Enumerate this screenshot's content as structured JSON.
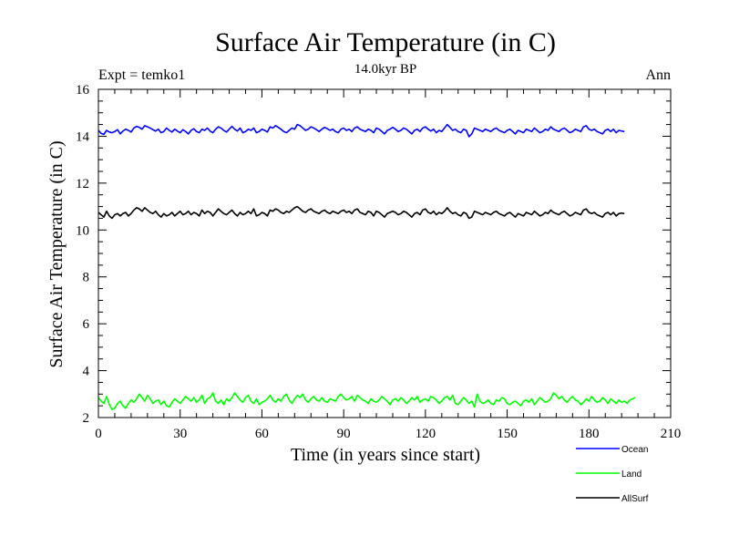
{
  "chart_data": {
    "type": "line",
    "title": "Surface Air Temperature (in C)",
    "subtitle": "14.0kyr BP",
    "annotation_left": "Expt = temko1",
    "annotation_right": "Ann",
    "xlabel": "Time (in years since start)",
    "ylabel": "Surface Air Temperature (in C)",
    "xlim": [
      0,
      210
    ],
    "ylim": [
      2,
      16
    ],
    "xticks": [
      0,
      30,
      60,
      90,
      120,
      150,
      180,
      210
    ],
    "yticks": [
      2,
      4,
      6,
      8,
      10,
      12,
      14,
      16
    ],
    "xtick_labels": [
      "0",
      "30",
      "60",
      "90",
      "120",
      "150",
      "180",
      "210"
    ],
    "ytick_labels": [
      "2",
      "4",
      "6",
      "8",
      "10",
      "12",
      "14",
      "16"
    ],
    "legend_position": "below-right",
    "series": [
      {
        "name": "Ocean",
        "color": "#0000ff",
        "x_start": 0,
        "x_step": 1,
        "values": [
          14.25,
          14.12,
          14.08,
          14.25,
          14.18,
          14.15,
          14.2,
          14.28,
          14.1,
          14.22,
          14.3,
          14.25,
          14.18,
          14.35,
          14.42,
          14.38,
          14.3,
          14.45,
          14.4,
          14.35,
          14.28,
          14.22,
          14.3,
          14.15,
          14.2,
          14.35,
          14.25,
          14.18,
          14.3,
          14.22,
          14.15,
          14.28,
          14.2,
          14.1,
          14.25,
          14.32,
          14.2,
          14.15,
          14.3,
          14.25,
          14.35,
          14.22,
          14.15,
          14.3,
          14.4,
          14.35,
          14.25,
          14.18,
          14.3,
          14.42,
          14.3,
          14.22,
          14.35,
          14.15,
          14.2,
          14.3,
          14.25,
          14.35,
          14.15,
          14.2,
          14.3,
          14.25,
          14.18,
          14.4,
          14.35,
          14.45,
          14.38,
          14.3,
          14.2,
          14.15,
          14.25,
          14.35,
          14.3,
          14.5,
          14.45,
          14.35,
          14.25,
          14.3,
          14.4,
          14.35,
          14.28,
          14.2,
          14.3,
          14.38,
          14.32,
          14.25,
          14.3,
          14.2,
          14.15,
          14.3,
          14.35,
          14.25,
          14.3,
          14.2,
          14.35,
          14.4,
          14.3,
          14.25,
          14.2,
          14.3,
          14.25,
          14.15,
          14.35,
          14.3,
          14.2,
          14.1,
          14.25,
          14.3,
          14.38,
          14.3,
          14.2,
          14.25,
          14.35,
          14.3,
          14.2,
          14.1,
          14.25,
          14.3,
          14.2,
          14.35,
          14.4,
          14.3,
          14.22,
          14.3,
          14.15,
          14.25,
          14.2,
          14.35,
          14.5,
          14.38,
          14.25,
          14.3,
          14.2,
          14.15,
          14.3,
          14.25,
          13.98,
          14.1,
          14.35,
          14.3,
          14.25,
          14.2,
          14.3,
          14.25,
          14.2,
          14.3,
          14.35,
          14.25,
          14.2,
          14.15,
          14.25,
          14.3,
          14.2,
          14.1,
          14.25,
          14.2,
          14.15,
          14.3,
          14.25,
          14.2,
          14.35,
          14.25,
          14.15,
          14.2,
          14.3,
          14.25,
          14.4,
          14.3,
          14.25,
          14.2,
          14.3,
          14.35,
          14.25,
          14.15,
          14.2,
          14.3,
          14.25,
          14.2,
          14.4,
          14.45,
          14.3,
          14.25,
          14.3,
          14.2,
          14.15,
          14.1,
          14.25,
          14.3,
          14.2,
          14.3,
          14.15,
          14.25,
          14.22,
          14.2
        ]
      },
      {
        "name": "Land",
        "color": "#00ff00",
        "x_start": 0,
        "x_step": 1,
        "values": [
          2.85,
          2.7,
          2.6,
          2.9,
          2.55,
          2.35,
          2.4,
          2.6,
          2.7,
          2.5,
          2.4,
          2.6,
          2.75,
          2.65,
          2.8,
          3.0,
          2.85,
          2.7,
          2.95,
          2.8,
          2.6,
          2.7,
          2.75,
          2.55,
          2.7,
          2.5,
          2.45,
          2.65,
          2.8,
          2.7,
          2.6,
          2.75,
          2.9,
          2.8,
          2.7,
          2.85,
          2.65,
          2.75,
          2.95,
          2.6,
          2.8,
          2.85,
          3.05,
          2.7,
          2.6,
          2.75,
          2.55,
          2.8,
          2.7,
          2.85,
          3.05,
          2.9,
          2.75,
          2.65,
          2.85,
          2.95,
          2.7,
          2.6,
          2.8,
          2.55,
          2.65,
          2.7,
          2.8,
          2.95,
          2.75,
          2.65,
          2.8,
          2.7,
          2.9,
          3.0,
          2.75,
          2.6,
          2.8,
          2.95,
          2.85,
          3.0,
          2.75,
          2.65,
          2.8,
          2.9,
          2.75,
          2.7,
          2.85,
          2.7,
          2.65,
          2.8,
          2.75,
          2.7,
          2.9,
          3.0,
          2.85,
          2.75,
          2.8,
          2.9,
          2.7,
          2.95,
          2.85,
          2.75,
          2.7,
          2.6,
          2.8,
          2.7,
          2.65,
          2.75,
          2.9,
          2.8,
          2.7,
          2.55,
          2.75,
          2.8,
          2.7,
          2.85,
          2.75,
          2.6,
          2.7,
          2.85,
          2.75,
          2.9,
          2.65,
          2.75,
          2.8,
          2.7,
          2.9,
          2.85,
          2.75,
          2.6,
          2.7,
          2.85,
          2.9,
          2.75,
          2.95,
          2.6,
          2.55,
          2.7,
          2.85,
          2.75,
          2.6,
          2.7,
          2.45,
          3.0,
          2.7,
          2.6,
          2.65,
          2.75,
          2.6,
          2.55,
          2.75,
          2.7,
          2.85,
          2.8,
          2.6,
          2.55,
          2.65,
          2.7,
          2.6,
          2.5,
          2.7,
          2.75,
          2.65,
          2.8,
          2.55,
          2.7,
          2.85,
          2.75,
          2.65,
          2.7,
          2.8,
          3.05,
          2.95,
          2.8,
          2.9,
          2.75,
          2.65,
          2.8,
          2.9,
          2.75,
          2.7,
          2.55,
          2.65,
          2.8,
          2.7,
          2.9,
          2.75,
          2.65,
          2.7,
          2.85,
          2.75,
          2.6,
          2.8,
          2.7,
          2.6,
          2.75,
          2.65,
          2.7,
          2.6,
          2.75,
          2.8,
          2.85
        ]
      },
      {
        "name": "AllSurf",
        "color": "#000000",
        "x_start": 0,
        "x_step": 1,
        "values": [
          10.75,
          10.65,
          10.55,
          10.8,
          10.6,
          10.5,
          10.65,
          10.7,
          10.6,
          10.7,
          10.75,
          10.6,
          10.7,
          10.85,
          10.95,
          10.9,
          10.8,
          10.95,
          10.85,
          10.75,
          10.7,
          10.8,
          10.65,
          10.55,
          10.7,
          10.6,
          10.65,
          10.75,
          10.6,
          10.7,
          10.8,
          10.65,
          10.7,
          10.8,
          10.65,
          10.75,
          10.7,
          10.6,
          10.85,
          10.7,
          10.8,
          10.75,
          10.6,
          10.75,
          10.9,
          10.8,
          10.7,
          10.65,
          10.75,
          10.85,
          10.7,
          10.6,
          10.75,
          10.65,
          10.7,
          10.8,
          10.7,
          10.9,
          10.6,
          10.65,
          10.75,
          10.7,
          10.6,
          10.85,
          10.8,
          10.9,
          10.85,
          10.75,
          10.7,
          10.8,
          10.75,
          10.85,
          10.95,
          11.0,
          10.9,
          10.8,
          10.75,
          10.85,
          10.9,
          10.8,
          10.75,
          10.7,
          10.8,
          10.85,
          10.75,
          10.7,
          10.8,
          10.75,
          10.7,
          10.8,
          10.85,
          10.75,
          10.8,
          10.7,
          10.85,
          10.9,
          10.75,
          10.7,
          10.65,
          10.8,
          10.75,
          10.6,
          10.8,
          10.75,
          10.65,
          10.55,
          10.7,
          10.75,
          10.8,
          10.75,
          10.65,
          10.7,
          10.8,
          10.75,
          10.65,
          10.55,
          10.7,
          10.75,
          10.65,
          10.85,
          10.9,
          10.75,
          10.7,
          10.8,
          10.65,
          10.75,
          10.7,
          10.8,
          10.95,
          10.8,
          10.7,
          10.75,
          10.65,
          10.6,
          10.75,
          10.7,
          10.5,
          10.55,
          10.8,
          10.75,
          10.7,
          10.65,
          10.75,
          10.7,
          10.65,
          10.75,
          10.8,
          10.7,
          10.65,
          10.6,
          10.7,
          10.75,
          10.65,
          10.55,
          10.7,
          10.65,
          10.6,
          10.75,
          10.7,
          10.65,
          10.8,
          10.7,
          10.6,
          10.65,
          10.75,
          10.7,
          10.85,
          10.75,
          10.7,
          10.65,
          10.75,
          10.8,
          10.7,
          10.6,
          10.65,
          10.75,
          10.7,
          10.65,
          10.85,
          10.9,
          10.75,
          10.7,
          10.75,
          10.65,
          10.6,
          10.55,
          10.7,
          10.75,
          10.65,
          10.75,
          10.6,
          10.7,
          10.72,
          10.7
        ]
      }
    ]
  }
}
